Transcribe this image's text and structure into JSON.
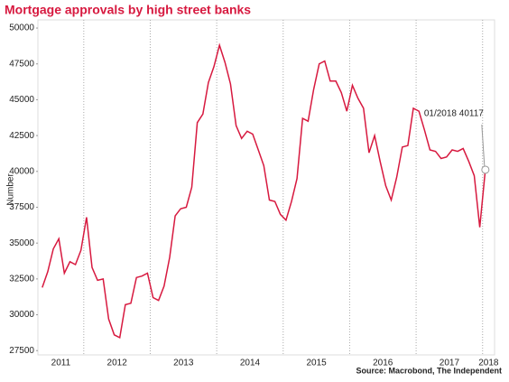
{
  "chart_data": {
    "type": "line",
    "title": "Mortgage approvals by high street banks",
    "y_label": "Number",
    "source": "Source: Macrobond, The Independent",
    "annotation": "01/2018 40117",
    "xlim": [
      2011.31,
      2018.18
    ],
    "xticks": [
      {
        "value": 2011,
        "label": "2011"
      },
      {
        "value": 2012,
        "label": "2012"
      },
      {
        "value": 2013,
        "label": "2013"
      },
      {
        "value": 2014,
        "label": "2014"
      },
      {
        "value": 2015,
        "label": "2015"
      },
      {
        "value": 2016,
        "label": "2016"
      },
      {
        "value": 2017,
        "label": "2017"
      },
      {
        "value": 2018,
        "label": "2018"
      }
    ],
    "ylim": [
      27200,
      50570
    ],
    "yticks": [
      27500,
      30000,
      32500,
      35000,
      37500,
      40000,
      42500,
      45000,
      47500,
      50000
    ],
    "grid": "x",
    "series": [
      {
        "name": "Mortgage approvals",
        "color": "#d7193f",
        "x": [
          2011.375,
          2011.458,
          2011.542,
          2011.625,
          2011.708,
          2011.792,
          2011.875,
          2011.958,
          2012.042,
          2012.125,
          2012.208,
          2012.292,
          2012.375,
          2012.458,
          2012.542,
          2012.625,
          2012.708,
          2012.792,
          2012.875,
          2012.958,
          2013.042,
          2013.125,
          2013.208,
          2013.292,
          2013.375,
          2013.458,
          2013.542,
          2013.625,
          2013.708,
          2013.792,
          2013.875,
          2013.958,
          2014.042,
          2014.125,
          2014.208,
          2014.292,
          2014.375,
          2014.458,
          2014.542,
          2014.625,
          2014.708,
          2014.792,
          2014.875,
          2014.958,
          2015.042,
          2015.125,
          2015.208,
          2015.292,
          2015.375,
          2015.458,
          2015.542,
          2015.625,
          2015.708,
          2015.792,
          2015.875,
          2015.958,
          2016.042,
          2016.125,
          2016.208,
          2016.292,
          2016.375,
          2016.458,
          2016.542,
          2016.625,
          2016.708,
          2016.792,
          2016.875,
          2016.958,
          2017.042,
          2017.125,
          2017.208,
          2017.292,
          2017.375,
          2017.458,
          2017.542,
          2017.625,
          2017.708,
          2017.792,
          2017.875,
          2017.958,
          2018.042
        ],
        "values": [
          31900,
          33000,
          34600,
          35300,
          32900,
          33700,
          33500,
          34500,
          36800,
          33300,
          32400,
          32500,
          29700,
          28600,
          28400,
          30700,
          30800,
          32600,
          32700,
          32900,
          31200,
          31000,
          32000,
          34000,
          36900,
          37400,
          37500,
          38900,
          43400,
          44000,
          46200,
          47300,
          48800,
          47600,
          46100,
          43200,
          42300,
          42800,
          42600,
          41500,
          40400,
          38000,
          37900,
          37000,
          36600,
          37900,
          39500,
          43700,
          43500,
          45700,
          47500,
          47700,
          46300,
          46300,
          45500,
          44200,
          46000,
          45100,
          44400,
          41300,
          42500,
          40700,
          39000,
          38000,
          39600,
          41700,
          41800,
          44400,
          44200,
          42900,
          41500,
          41400,
          40900,
          41000,
          41500,
          41400,
          41600,
          40700,
          39700,
          36100,
          40117
        ]
      }
    ]
  }
}
